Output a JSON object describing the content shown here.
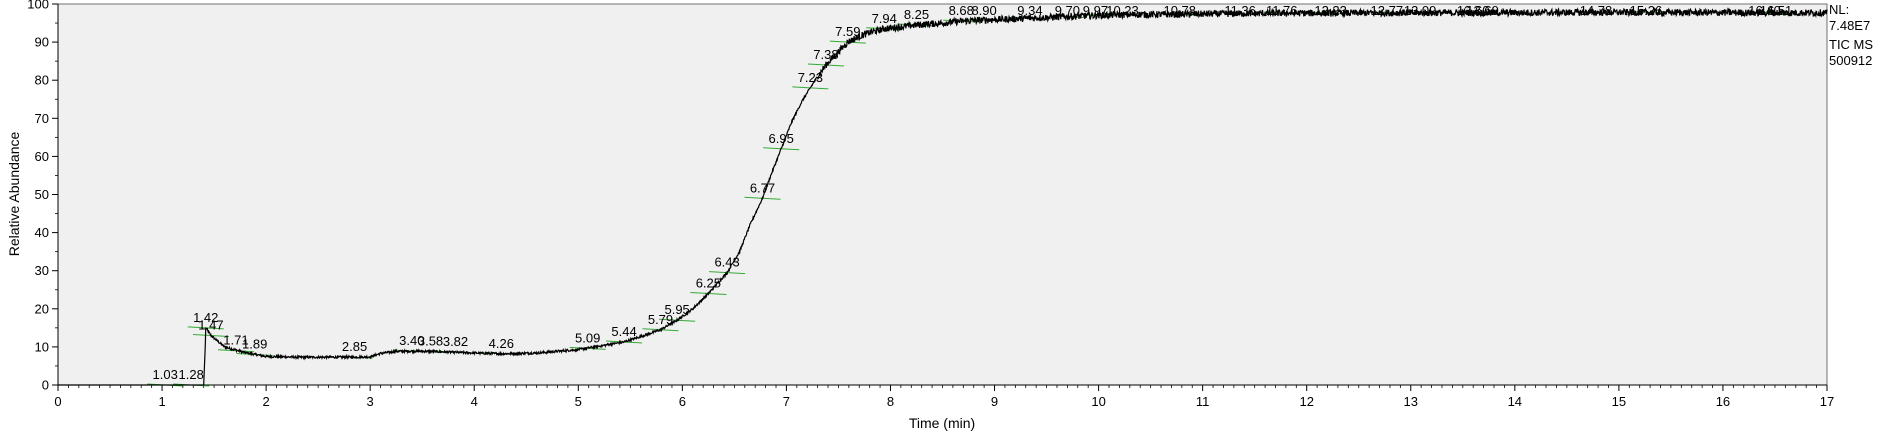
{
  "chart_data": {
    "type": "line",
    "xlabel": "Time (min)",
    "ylabel": "Relative Abundance",
    "xlim": [
      0,
      17
    ],
    "ylim": [
      0,
      100
    ],
    "x_ticks": [
      "0",
      "1",
      "2",
      "3",
      "4",
      "5",
      "6",
      "7",
      "8",
      "9",
      "10",
      "11",
      "12",
      "13",
      "14",
      "15",
      "16",
      "17"
    ],
    "y_ticks": [
      "0",
      "10",
      "20",
      "30",
      "40",
      "50",
      "60",
      "70",
      "80",
      "90",
      "100"
    ],
    "info_lines": [
      "NL:",
      "7.48E7",
      "TIC  MS",
      "500912"
    ],
    "series": [
      {
        "x": [
          0.0,
          1.4,
          1.415,
          1.42,
          1.47,
          1.6,
          1.8,
          2.0,
          2.3,
          2.6,
          2.85,
          3.0,
          3.1,
          3.25,
          3.4,
          3.6,
          3.8,
          4.0,
          4.26,
          4.6,
          5.0,
          5.2,
          5.44,
          5.6,
          5.79,
          5.95,
          6.1,
          6.25,
          6.43,
          6.55,
          6.65,
          6.77,
          6.85,
          6.95,
          7.05,
          7.15,
          7.23,
          7.3,
          7.38,
          7.5,
          7.59,
          7.7,
          7.8,
          7.94,
          8.1,
          8.25,
          8.5,
          8.68,
          8.9,
          9.1,
          9.34,
          9.7,
          9.97,
          10.23,
          10.78,
          11.36,
          11.76,
          12.23,
          12.77,
          13.09,
          13.6,
          13.69,
          14.78,
          15.26,
          16.4,
          16.51,
          17.0
        ],
        "y": [
          0,
          0,
          10,
          15,
          13,
          10,
          8.5,
          7.5,
          7.3,
          7.3,
          7.3,
          7.4,
          8.3,
          8.8,
          8.9,
          8.8,
          8.6,
          8.4,
          8.2,
          8.4,
          9.3,
          10.2,
          11.3,
          12.7,
          14.5,
          17.0,
          20.0,
          24.0,
          29.5,
          35.0,
          42.0,
          49.0,
          55.0,
          62.0,
          69.0,
          74.5,
          78.0,
          81.0,
          84.0,
          87.5,
          90.0,
          91.5,
          92.5,
          93.5,
          94.0,
          94.5,
          95.0,
          95.5,
          95.8,
          96.0,
          96.3,
          96.7,
          97.0,
          97.2,
          97.3,
          97.5,
          97.6,
          97.6,
          97.7,
          97.7,
          97.7,
          97.7,
          97.8,
          97.8,
          97.7,
          97.7,
          97.7
        ]
      }
    ],
    "annotations": [
      {
        "label": "1.03",
        "x": 1.03,
        "y": 0
      },
      {
        "label": "1.28",
        "x": 1.28,
        "y": 0
      },
      {
        "label": "1.42",
        "x": 1.42,
        "y": 15
      },
      {
        "label": "1.47",
        "x": 1.47,
        "y": 13
      },
      {
        "label": "1.71",
        "x": 1.71,
        "y": 9
      },
      {
        "label": "1.89",
        "x": 1.89,
        "y": 8
      },
      {
        "label": "2.85",
        "x": 2.85,
        "y": 7.3
      },
      {
        "label": "3.40",
        "x": 3.4,
        "y": 8.9
      },
      {
        "label": "3.58",
        "x": 3.58,
        "y": 8.8
      },
      {
        "label": "3.82",
        "x": 3.82,
        "y": 8.6
      },
      {
        "label": "4.26",
        "x": 4.26,
        "y": 8.2
      },
      {
        "label": "5.09",
        "x": 5.09,
        "y": 9.6
      },
      {
        "label": "5.44",
        "x": 5.44,
        "y": 11.3
      },
      {
        "label": "5.79",
        "x": 5.79,
        "y": 14.5
      },
      {
        "label": "5.95",
        "x": 5.95,
        "y": 17.0
      },
      {
        "label": "6.25",
        "x": 6.25,
        "y": 24.0
      },
      {
        "label": "6.43",
        "x": 6.43,
        "y": 29.5
      },
      {
        "label": "6.77",
        "x": 6.77,
        "y": 49.0
      },
      {
        "label": "6.95",
        "x": 6.95,
        "y": 62.0
      },
      {
        "label": "7.23",
        "x": 7.23,
        "y": 78.0
      },
      {
        "label": "7.38",
        "x": 7.38,
        "y": 84.0
      },
      {
        "label": "7.59",
        "x": 7.59,
        "y": 90.0
      },
      {
        "label": "7.94",
        "x": 7.94,
        "y": 93.5
      },
      {
        "label": "8.25",
        "x": 8.25,
        "y": 94.5
      },
      {
        "label": "8.68",
        "x": 8.68,
        "y": 95.5
      },
      {
        "label": "8.90",
        "x": 8.9,
        "y": 95.8
      },
      {
        "label": "9.34",
        "x": 9.34,
        "y": 96.3
      },
      {
        "label": "9.70",
        "x": 9.7,
        "y": 96.7
      },
      {
        "label": "9.97",
        "x": 9.97,
        "y": 97.0
      },
      {
        "label": "10.23",
        "x": 10.23,
        "y": 97.2
      },
      {
        "label": "10.78",
        "x": 10.78,
        "y": 97.3
      },
      {
        "label": "11.36",
        "x": 11.36,
        "y": 97.5
      },
      {
        "label": "11.76",
        "x": 11.76,
        "y": 97.6
      },
      {
        "label": "12.23",
        "x": 12.23,
        "y": 97.6
      },
      {
        "label": "12.77",
        "x": 12.77,
        "y": 97.7
      },
      {
        "label": "13.09",
        "x": 13.09,
        "y": 97.7
      },
      {
        "label": "13.60",
        "x": 13.6,
        "y": 97.7
      },
      {
        "label": "13.69",
        "x": 13.69,
        "y": 97.7
      },
      {
        "label": "14.78",
        "x": 14.78,
        "y": 97.8
      },
      {
        "label": "15.26",
        "x": 15.26,
        "y": 97.8
      },
      {
        "label": "16.40",
        "x": 16.4,
        "y": 97.7
      },
      {
        "label": "16.51",
        "x": 16.51,
        "y": 97.7
      }
    ],
    "colors": {
      "plot_background": "#f0f0f0",
      "trace": "#000000",
      "peak_marker": "#33aa33"
    },
    "grid": false,
    "legend": "none"
  }
}
